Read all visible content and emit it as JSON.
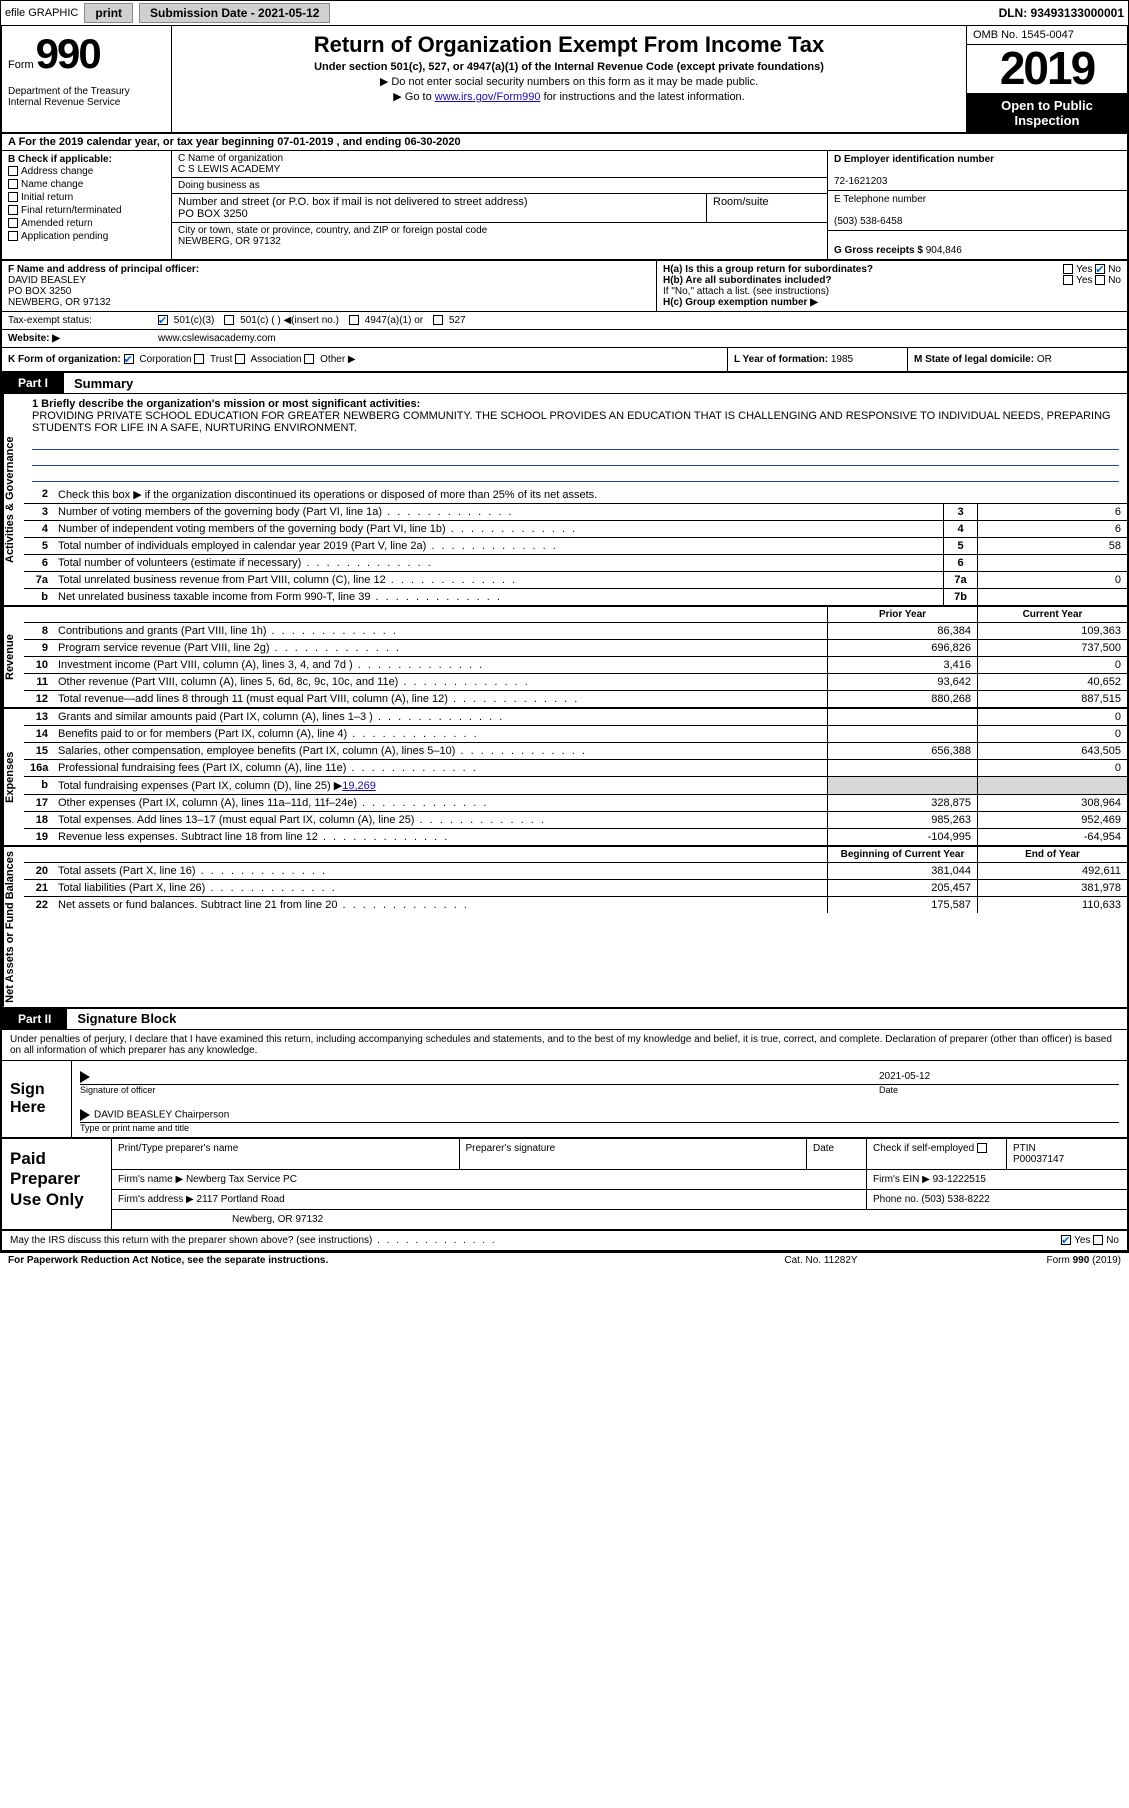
{
  "topbar": {
    "efile": "efile GRAPHIC",
    "print": "print",
    "subdate_label": "Submission Date - 2021-05-12",
    "dln": "DLN: 93493133000001"
  },
  "header": {
    "form_word": "Form",
    "form_num": "990",
    "dept": "Department of the Treasury Internal Revenue Service",
    "title": "Return of Organization Exempt From Income Tax",
    "sub1": "Under section 501(c), 527, or 4947(a)(1) of the Internal Revenue Code (except private foundations)",
    "sub2": "▶ Do not enter social security numbers on this form as it may be made public.",
    "sub3a": "▶ Go to ",
    "sub3_link": "www.irs.gov/Form990",
    "sub3b": " for instructions and the latest information.",
    "omb": "OMB No. 1545-0047",
    "year": "2019",
    "open": "Open to Public Inspection"
  },
  "aline": "A For the 2019 calendar year, or tax year beginning 07-01-2019   , and ending 06-30-2020",
  "b": {
    "label": "B Check if applicable:",
    "items": [
      "Address change",
      "Name change",
      "Initial return",
      "Final return/terminated",
      "Amended return",
      "Application pending"
    ]
  },
  "c": {
    "name_label": "C Name of organization",
    "name": "C S LEWIS ACADEMY",
    "dba_label": "Doing business as",
    "addr_label": "Number and street (or P.O. box if mail is not delivered to street address)",
    "room_label": "Room/suite",
    "addr": "PO BOX 3250",
    "city_label": "City or town, state or province, country, and ZIP or foreign postal code",
    "city": "NEWBERG, OR  97132"
  },
  "d": {
    "label": "D Employer identification number",
    "val": "72-1621203"
  },
  "e": {
    "label": "E Telephone number",
    "val": "(503) 538-6458"
  },
  "g": {
    "label": "G Gross receipts $ ",
    "val": "904,846"
  },
  "f": {
    "label": "F  Name and address of principal officer:",
    "name": "DAVID BEASLEY",
    "addr1": "PO BOX 3250",
    "addr2": "NEWBERG, OR  97132"
  },
  "h": {
    "a": "H(a)  Is this a group return for subordinates?",
    "b": "H(b)  Are all subordinates included?",
    "b2": "If \"No,\" attach a list. (see instructions)",
    "c": "H(c)  Group exemption number ▶",
    "yes": "Yes",
    "no": "No"
  },
  "i": {
    "label": "Tax-exempt status:",
    "opts": [
      "501(c)(3)",
      "501(c) (  ) ◀(insert no.)",
      "4947(a)(1) or",
      "527"
    ]
  },
  "j": {
    "label": "Website: ▶",
    "val": "www.cslewisacademy.com"
  },
  "k": {
    "label": "K Form of organization:",
    "opts": [
      "Corporation",
      "Trust",
      "Association",
      "Other ▶"
    ]
  },
  "l": {
    "label": "L Year of formation: ",
    "val": "1985"
  },
  "m": {
    "label": "M State of legal domicile: ",
    "val": "OR"
  },
  "part1": {
    "tag": "Part I",
    "title": "Summary"
  },
  "sections": {
    "activities": {
      "label": "Activities & Governance",
      "mission_label": "1  Briefly describe the organization's mission or most significant activities:",
      "mission": "PROVIDING PRIVATE SCHOOL EDUCATION FOR GREATER NEWBERG COMMUNITY. THE SCHOOL PROVIDES AN EDUCATION THAT IS CHALLENGING AND RESPONSIVE TO INDIVIDUAL NEEDS, PREPARING STUDENTS FOR LIFE IN A SAFE, NURTURING ENVIRONMENT.",
      "line2": "Check this box ▶      if the organization discontinued its operations or disposed of more than 25% of its net assets.",
      "rows": [
        {
          "n": "3",
          "t": "Number of voting members of the governing body (Part VI, line 1a)",
          "box": "3",
          "v": "6"
        },
        {
          "n": "4",
          "t": "Number of independent voting members of the governing body (Part VI, line 1b)",
          "box": "4",
          "v": "6"
        },
        {
          "n": "5",
          "t": "Total number of individuals employed in calendar year 2019 (Part V, line 2a)",
          "box": "5",
          "v": "58"
        },
        {
          "n": "6",
          "t": "Total number of volunteers (estimate if necessary)",
          "box": "6",
          "v": ""
        },
        {
          "n": "7a",
          "t": "Total unrelated business revenue from Part VIII, column (C), line 12",
          "box": "7a",
          "v": "0"
        },
        {
          "n": "b",
          "t": "Net unrelated business taxable income from Form 990-T, line 39",
          "box": "7b",
          "v": ""
        }
      ]
    },
    "revenue": {
      "label": "Revenue",
      "hdr_prior": "Prior Year",
      "hdr_curr": "Current Year",
      "rows": [
        {
          "n": "8",
          "t": "Contributions and grants (Part VIII, line 1h)",
          "p": "86,384",
          "c": "109,363"
        },
        {
          "n": "9",
          "t": "Program service revenue (Part VIII, line 2g)",
          "p": "696,826",
          "c": "737,500"
        },
        {
          "n": "10",
          "t": "Investment income (Part VIII, column (A), lines 3, 4, and 7d )",
          "p": "3,416",
          "c": "0"
        },
        {
          "n": "11",
          "t": "Other revenue (Part VIII, column (A), lines 5, 6d, 8c, 9c, 10c, and 11e)",
          "p": "93,642",
          "c": "40,652"
        },
        {
          "n": "12",
          "t": "Total revenue—add lines 8 through 11 (must equal Part VIII, column (A), line 12)",
          "p": "880,268",
          "c": "887,515"
        }
      ]
    },
    "expenses": {
      "label": "Expenses",
      "rows": [
        {
          "n": "13",
          "t": "Grants and similar amounts paid (Part IX, column (A), lines 1–3 )",
          "p": "",
          "c": "0"
        },
        {
          "n": "14",
          "t": "Benefits paid to or for members (Part IX, column (A), line 4)",
          "p": "",
          "c": "0"
        },
        {
          "n": "15",
          "t": "Salaries, other compensation, employee benefits (Part IX, column (A), lines 5–10)",
          "p": "656,388",
          "c": "643,505"
        },
        {
          "n": "16a",
          "t": "Professional fundraising fees (Part IX, column (A), line 11e)",
          "p": "",
          "c": "0"
        },
        {
          "n": "b",
          "t": "Total fundraising expenses (Part IX, column (D), line 25) ▶",
          "link": "19,269",
          "shade": true
        },
        {
          "n": "17",
          "t": "Other expenses (Part IX, column (A), lines 11a–11d, 11f–24e)",
          "p": "328,875",
          "c": "308,964"
        },
        {
          "n": "18",
          "t": "Total expenses. Add lines 13–17 (must equal Part IX, column (A), line 25)",
          "p": "985,263",
          "c": "952,469"
        },
        {
          "n": "19",
          "t": "Revenue less expenses. Subtract line 18 from line 12",
          "p": "-104,995",
          "c": "-64,954"
        }
      ]
    },
    "netassets": {
      "label": "Net Assets or Fund Balances",
      "hdr_prior": "Beginning of Current Year",
      "hdr_curr": "End of Year",
      "rows": [
        {
          "n": "20",
          "t": "Total assets (Part X, line 16)",
          "p": "381,044",
          "c": "492,611"
        },
        {
          "n": "21",
          "t": "Total liabilities (Part X, line 26)",
          "p": "205,457",
          "c": "381,978"
        },
        {
          "n": "22",
          "t": "Net assets or fund balances. Subtract line 21 from line 20",
          "p": "175,587",
          "c": "110,633"
        }
      ]
    }
  },
  "part2": {
    "tag": "Part II",
    "title": "Signature Block"
  },
  "sigtext": "Under penalties of perjury, I declare that I have examined this return, including accompanying schedules and statements, and to the best of my knowledge and belief, it is true, correct, and complete. Declaration of preparer (other than officer) is based on all information of which preparer has any knowledge.",
  "sign": {
    "label": "Sign Here",
    "sig_label": "Signature of officer",
    "date_label": "Date",
    "date": "2021-05-12",
    "name": "DAVID BEASLEY Chairperson",
    "name_label": "Type or print name and title"
  },
  "paid": {
    "label": "Paid Preparer Use Only",
    "h1": "Print/Type preparer's name",
    "h2": "Preparer's signature",
    "h3": "Date",
    "h4": "Check       if self-employed",
    "h5": "PTIN",
    "ptin": "P00037147",
    "firm_label": "Firm's name    ▶",
    "firm": "Newberg Tax Service PC",
    "ein_label": "Firm's EIN ▶",
    "ein": "93-1222515",
    "addr_label": "Firm's address ▶",
    "addr1": "2117 Portland Road",
    "addr2": "Newberg, OR  97132",
    "phone_label": "Phone no.",
    "phone": "(503) 538-8222"
  },
  "footer": {
    "discuss": "May the IRS discuss this return with the preparer shown above? (see instructions)",
    "yes": "Yes",
    "no": "No",
    "pra": "For Paperwork Reduction Act Notice, see the separate instructions.",
    "cat": "Cat. No. 11282Y",
    "form": "Form 990 (2019)"
  },
  "colors": {
    "link": "#1a0dab",
    "check": "#0066cc",
    "shade": "#d8d8d8"
  }
}
